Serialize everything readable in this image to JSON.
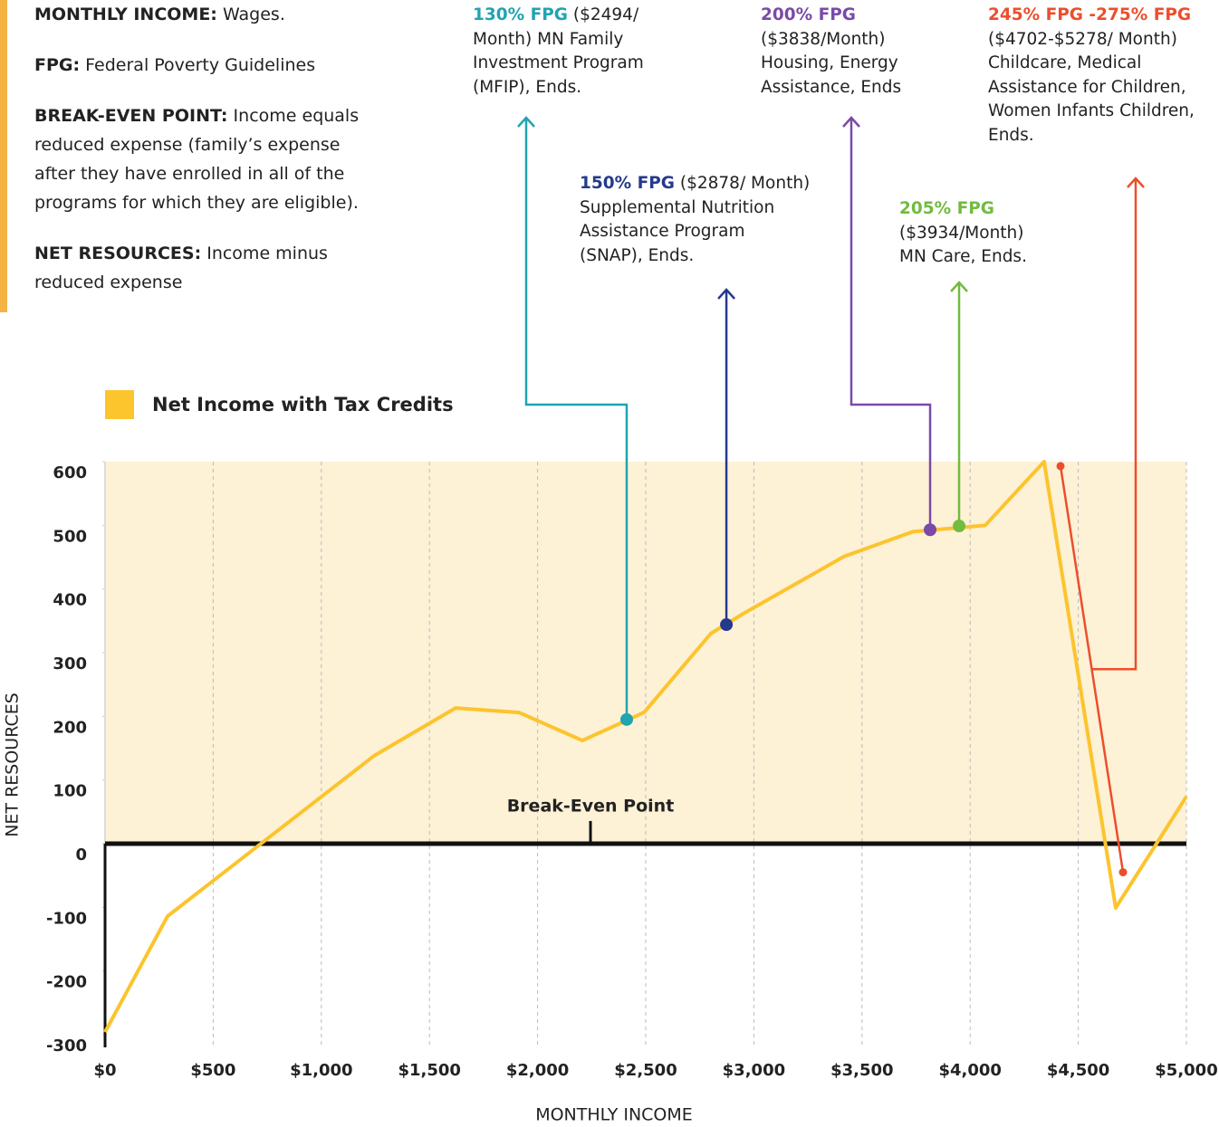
{
  "definitions": [
    {
      "term": "MONTHLY INCOME:",
      "text": "Wages."
    },
    {
      "term": "FPG:",
      "text": "Federal Poverty Guidelines"
    },
    {
      "term": "BREAK-EVEN POINT:",
      "text": "Income equals reduced expense (family’s expense after they have enrolled in all of the programs for which they are eligible)."
    },
    {
      "term": "NET RESOURCES:",
      "text": "Income minus reduced expense"
    }
  ],
  "chart_data": {
    "type": "line",
    "x_label": "MONTHLY INCOME",
    "y_label": "NET RESOURCES",
    "xlim": [
      0,
      5000
    ],
    "ylim": [
      -320,
      600
    ],
    "xticks": [
      {
        "value": 0,
        "label": "$0"
      },
      {
        "value": 500,
        "label": "$500"
      },
      {
        "value": 1000,
        "label": "$1,000"
      },
      {
        "value": 1500,
        "label": "$1,500"
      },
      {
        "value": 2000,
        "label": "$2,000"
      },
      {
        "value": 2500,
        "label": "$2,500"
      },
      {
        "value": 3000,
        "label": "$3,000"
      },
      {
        "value": 3500,
        "label": "$3,500"
      },
      {
        "value": 4000,
        "label": "$4,000"
      },
      {
        "value": 4500,
        "label": "$4,500"
      },
      {
        "value": 5000,
        "label": "$5,000"
      }
    ],
    "yticks": [
      600,
      500,
      400,
      300,
      200,
      100,
      0,
      -100,
      -200,
      -300
    ],
    "grid": true,
    "shade_color": "#fdf1d6",
    "break_even_label": "Break-Even Point",
    "series": [
      {
        "name": "Net Income with Tax Credits",
        "color": "#fcc42d",
        "x": [
          0,
          289,
          1244,
          1621,
          1914,
          2207,
          2492,
          2801,
          2965,
          3417,
          3735,
          4070,
          4342,
          4673,
          5000
        ],
        "values": [
          -296,
          -114,
          138,
          213,
          206,
          162,
          206,
          330,
          364,
          451,
          490,
          500,
          600,
          -101,
          74
        ]
      }
    ],
    "annotations": [
      {
        "bold": "130% FPG",
        "text": "($2494/ Month) MN Family Investment Program (MFIP), Ends.",
        "color": "#20a4b0",
        "points": [
          {
            "x": 2412,
            "y": 195
          }
        ]
      },
      {
        "bold": "150% FPG",
        "text": "($2878/ Month) Supplemental Nutrition Assistance Program (SNAP), Ends.",
        "color": "#253a8e",
        "points": [
          {
            "x": 2873,
            "y": 344
          }
        ]
      },
      {
        "bold": "200% FPG",
        "text": "($3838/Month) Housing, Energy Assistance, Ends",
        "color": "#7a4aa8",
        "points": [
          {
            "x": 3815,
            "y": 493
          }
        ]
      },
      {
        "bold": "205% FPG",
        "text": "($3934/Month) MN Care, Ends.",
        "color": "#72bb3f",
        "points": [
          {
            "x": 3949,
            "y": 499
          }
        ]
      },
      {
        "bold": "245% FPG -275% FPG",
        "text": "($4702-$5278/ Month) Childcare, Medical Assistance for Children, Women Infants Children, Ends.",
        "color": "#ec4e2c",
        "points": [
          {
            "x": 4418,
            "y": 593
          },
          {
            "x": 4707,
            "y": -45
          }
        ]
      }
    ]
  }
}
